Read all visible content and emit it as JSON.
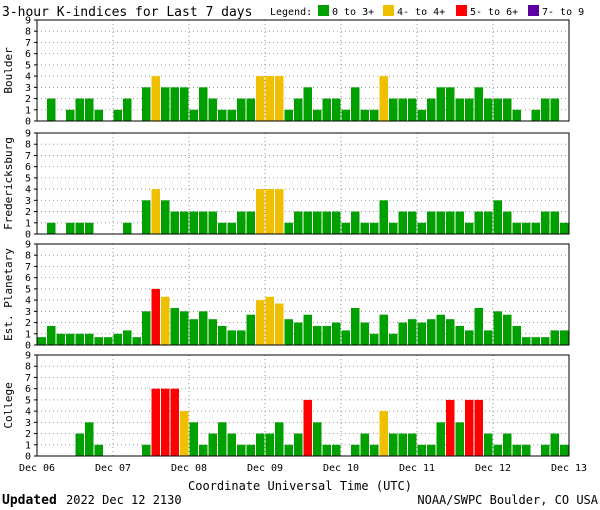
{
  "header": {
    "title": "3-hour K-indices for Last 7 days",
    "legend_label": "Legend:",
    "legend": [
      {
        "label": "0 to 3+",
        "color": "#00a000"
      },
      {
        "label": "4- to 4+",
        "color": "#f0c000"
      },
      {
        "label": "5- to 6+",
        "color": "#ff0000"
      },
      {
        "label": "7- to 9",
        "color": "#5a00a0"
      }
    ]
  },
  "footer": {
    "updated_label": "Updated",
    "updated_value": "2022 Dec 12 2130",
    "credit": "NOAA/SWPC Boulder, CO USA"
  },
  "chart_data": [
    {
      "type": "bar",
      "ylabel": "Boulder",
      "ylim": [
        0,
        9
      ],
      "xlabel": "",
      "x_ticks": [
        "Dec 06",
        "Dec 07",
        "Dec 08",
        "Dec 09",
        "Dec 10",
        "Dec 11",
        "Dec 12",
        "Dec 13"
      ],
      "grid": true,
      "values": [
        0,
        2,
        0,
        1,
        2,
        2,
        1,
        0,
        1,
        2,
        0,
        3,
        4,
        3,
        3,
        3,
        1,
        3,
        2,
        1,
        1,
        2,
        2,
        4,
        4,
        4,
        1,
        2,
        3,
        1,
        2,
        2,
        1,
        3,
        1,
        1,
        4,
        2,
        2,
        2,
        1,
        2,
        3,
        3,
        2,
        2,
        3,
        2,
        2,
        2,
        1,
        0,
        1,
        2,
        2,
        0
      ]
    },
    {
      "type": "bar",
      "ylabel": "Fredericksburg",
      "ylim": [
        0,
        9
      ],
      "xlabel": "",
      "x_ticks": [
        "Dec 06",
        "Dec 07",
        "Dec 08",
        "Dec 09",
        "Dec 10",
        "Dec 11",
        "Dec 12",
        "Dec 13"
      ],
      "grid": true,
      "values": [
        0,
        1,
        0,
        1,
        1,
        1,
        0,
        0,
        0,
        1,
        0,
        3,
        4,
        3,
        2,
        2,
        2,
        2,
        2,
        1,
        1,
        2,
        2,
        4,
        4,
        4,
        1,
        2,
        2,
        2,
        2,
        2,
        1,
        2,
        1,
        1,
        3,
        1,
        2,
        2,
        1,
        2,
        2,
        2,
        2,
        1,
        2,
        2,
        3,
        2,
        1,
        1,
        1,
        2,
        2,
        1
      ]
    },
    {
      "type": "bar",
      "ylabel": "Est. Planetary",
      "ylim": [
        0,
        9
      ],
      "xlabel": "",
      "x_ticks": [
        "Dec 06",
        "Dec 07",
        "Dec 08",
        "Dec 09",
        "Dec 10",
        "Dec 11",
        "Dec 12",
        "Dec 13"
      ],
      "grid": true,
      "values": [
        0.7,
        1.7,
        1,
        1,
        1,
        1,
        0.7,
        0.7,
        1,
        1.3,
        0.7,
        3,
        5,
        4.3,
        3.3,
        3,
        2.3,
        3,
        2.3,
        1.7,
        1.3,
        1.3,
        2.7,
        4,
        4.3,
        3.7,
        2.3,
        2,
        2.7,
        1.7,
        1.7,
        2,
        1.3,
        3.3,
        2,
        1,
        2.7,
        1,
        2,
        2.3,
        2,
        2.3,
        2.7,
        2.3,
        1.7,
        1.3,
        3.3,
        1.3,
        3,
        2.7,
        1.7,
        0.7,
        0.7,
        0.7,
        1.3,
        1.3
      ]
    },
    {
      "type": "bar",
      "ylabel": "College",
      "ylim": [
        0,
        9
      ],
      "xlabel": "Coordinate Universal Time (UTC)",
      "x_ticks": [
        "Dec 06",
        "Dec 07",
        "Dec 08",
        "Dec 09",
        "Dec 10",
        "Dec 11",
        "Dec 12",
        "Dec 13"
      ],
      "grid": true,
      "values": [
        0,
        0,
        0,
        0,
        2,
        3,
        1,
        0,
        0,
        0,
        0,
        1,
        6,
        6,
        6,
        4,
        3,
        1,
        2,
        3,
        2,
        1,
        1,
        2,
        2,
        3,
        1,
        2,
        5,
        3,
        1,
        1,
        0,
        1,
        2,
        1,
        4,
        2,
        2,
        2,
        1,
        1,
        3,
        5,
        3,
        5,
        5,
        2,
        1,
        2,
        1,
        1,
        0,
        1,
        2,
        1
      ]
    }
  ]
}
